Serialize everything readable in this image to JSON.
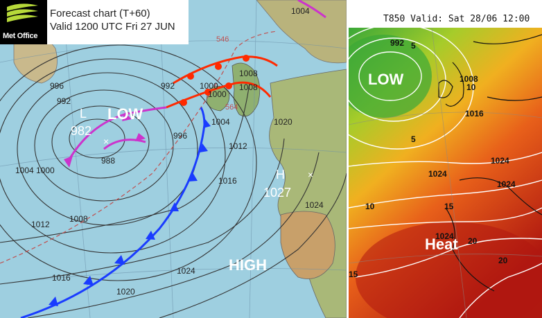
{
  "left_chart": {
    "logo": "Met Office",
    "title_line1": "Forecast chart (T+60)",
    "title_line2": "Valid 1200 UTC Fri 27 JUN",
    "annotation_low": "LOW",
    "annotation_high": "HIGH",
    "low_centre": {
      "letter": "L",
      "value": "982"
    },
    "high_centre": {
      "letter": "H",
      "value": "1027"
    },
    "isobar_labels": [
      "996",
      "992",
      "1000",
      "1004",
      "1008",
      "1012",
      "1016",
      "1020",
      "1024",
      "988",
      "1004",
      "1000",
      "1008",
      "1012",
      "1016",
      "1020",
      "1024",
      "996",
      "992",
      "1000",
      "1004",
      "1008"
    ],
    "thickness_labels": [
      "546",
      "564"
    ],
    "colors": {
      "sea": "#9ecfe0",
      "land": "#c9b98c",
      "cold_front": "#1a3cff",
      "warm_front": "#ff2a00",
      "occlusion": "#cc33cc",
      "isobar": "#333333",
      "thickness": "#c05050"
    }
  },
  "right_chart": {
    "title": "T850  Valid: Sat 28/06 12:00",
    "annotation_low": "LOW",
    "annotation_heat": "Heat",
    "contour_labels": [
      "992",
      "5",
      "1008",
      "10",
      "1016",
      "5",
      "1024",
      "1024",
      "1024",
      "10",
      "15",
      "1024",
      "20",
      "20",
      "15"
    ],
    "colors": {
      "cold": "#55b030",
      "mid": "#f0b020",
      "hot": "#c82010"
    }
  }
}
